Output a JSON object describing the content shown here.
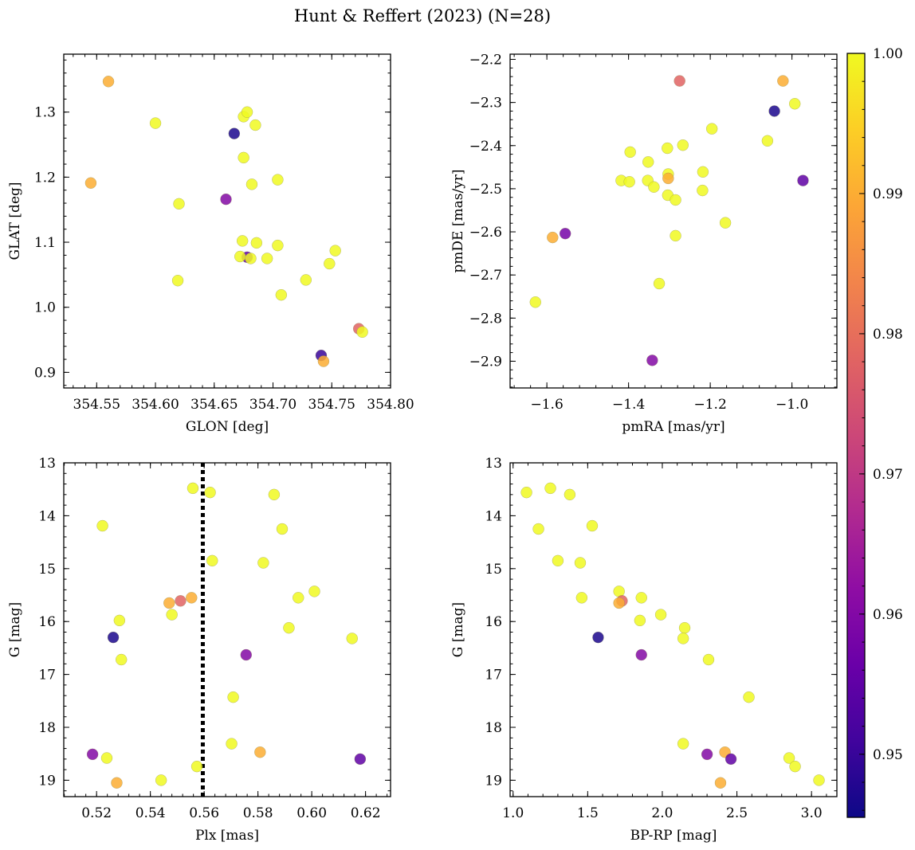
{
  "title": "Hunt & Reffert (2023) (N=28)",
  "colorbar": {
    "range": [
      0.9455,
      1.0
    ],
    "ticks": [
      0.95,
      0.96,
      0.97,
      0.98,
      0.99,
      1.0
    ],
    "tick_labels": [
      "0.95",
      "0.96",
      "0.97",
      "0.98",
      "0.99",
      "1.00"
    ],
    "colormap": "plasma"
  },
  "chart_data": [
    {
      "id": "tl",
      "type": "scatter",
      "xlabel": "GLON [deg]",
      "ylabel": "GLAT [deg]",
      "xlim": [
        354.522,
        354.8
      ],
      "ylim": [
        0.876,
        1.389
      ],
      "inverted_y": false,
      "xticks": [
        354.55,
        354.6,
        354.65,
        354.7,
        354.75,
        354.8
      ],
      "xtick_labels": [
        "354.55",
        "354.60",
        "354.65",
        "354.70",
        "354.75",
        "354.80"
      ],
      "yticks": [
        0.9,
        1.0,
        1.1,
        1.2,
        1.3
      ],
      "ytick_labels": [
        "0.9",
        "1.0",
        "1.1",
        "1.2",
        "1.3"
      ],
      "points": [
        [
          354.56,
          1.347,
          0.99
        ],
        [
          354.545,
          1.191,
          0.99
        ],
        [
          354.6,
          1.283,
          1.0
        ],
        [
          354.62,
          1.159,
          1.0
        ],
        [
          354.619,
          1.041,
          1.0
        ],
        [
          354.667,
          1.267,
          0.947
        ],
        [
          354.66,
          1.166,
          0.96
        ],
        [
          354.675,
          1.293,
          1.0
        ],
        [
          354.678,
          1.3,
          1.0
        ],
        [
          354.685,
          1.28,
          1.0
        ],
        [
          354.675,
          1.23,
          1.0
        ],
        [
          354.682,
          1.189,
          1.0
        ],
        [
          354.704,
          1.196,
          1.0
        ],
        [
          354.674,
          1.102,
          1.0
        ],
        [
          354.686,
          1.099,
          1.0
        ],
        [
          354.678,
          1.077,
          0.955
        ],
        [
          354.672,
          1.078,
          1.0
        ],
        [
          354.681,
          1.075,
          1.0
        ],
        [
          354.695,
          1.075,
          1.0
        ],
        [
          354.704,
          1.095,
          1.0
        ],
        [
          354.753,
          1.087,
          1.0
        ],
        [
          354.748,
          1.067,
          1.0
        ],
        [
          354.728,
          1.042,
          1.0
        ],
        [
          354.707,
          1.019,
          1.0
        ],
        [
          354.773,
          0.967,
          0.978
        ],
        [
          354.776,
          0.962,
          1.0
        ],
        [
          354.741,
          0.926,
          0.95
        ],
        [
          354.743,
          0.917,
          0.99
        ]
      ]
    },
    {
      "id": "tr",
      "type": "scatter",
      "xlabel": "pmRA [mas/yr]",
      "ylabel": "pmDE [mas/yr]",
      "xlim": [
        -1.69,
        -0.89
      ],
      "ylim": [
        -2.962,
        -2.188
      ],
      "inverted_y": false,
      "xticks": [
        -1.6,
        -1.4,
        -1.2,
        -1.0
      ],
      "xtick_labels": [
        "−1.6",
        "−1.4",
        "−1.2",
        "−1.0"
      ],
      "yticks": [
        -2.9,
        -2.8,
        -2.7,
        -2.6,
        -2.5,
        -2.4,
        -2.3,
        -2.2
      ],
      "ytick_labels": [
        "−2.9",
        "−2.8",
        "−2.7",
        "−2.6",
        "−2.5",
        "−2.4",
        "−2.3",
        "−2.2"
      ],
      "points": [
        [
          -1.275,
          -2.25,
          0.978
        ],
        [
          -1.022,
          -2.25,
          0.99
        ],
        [
          -1.043,
          -2.32,
          0.947
        ],
        [
          -0.993,
          -2.303,
          1.0
        ],
        [
          -1.196,
          -2.361,
          1.0
        ],
        [
          -1.06,
          -2.389,
          1.0
        ],
        [
          -1.267,
          -2.399,
          1.0
        ],
        [
          -1.305,
          -2.406,
          1.0
        ],
        [
          -1.396,
          -2.415,
          1.0
        ],
        [
          -1.352,
          -2.438,
          1.0
        ],
        [
          -1.218,
          -2.461,
          1.0
        ],
        [
          -0.973,
          -2.481,
          0.955
        ],
        [
          -1.418,
          -2.481,
          1.0
        ],
        [
          -1.398,
          -2.484,
          1.0
        ],
        [
          -1.353,
          -2.481,
          1.0
        ],
        [
          -1.303,
          -2.466,
          1.0
        ],
        [
          -1.303,
          -2.476,
          0.99
        ],
        [
          -1.338,
          -2.496,
          1.0
        ],
        [
          -1.219,
          -2.504,
          1.0
        ],
        [
          -1.304,
          -2.515,
          1.0
        ],
        [
          -1.285,
          -2.526,
          1.0
        ],
        [
          -1.163,
          -2.579,
          1.0
        ],
        [
          -1.285,
          -2.609,
          1.0
        ],
        [
          -1.555,
          -2.604,
          0.958
        ],
        [
          -1.586,
          -2.613,
          0.99
        ],
        [
          -1.325,
          -2.72,
          1.0
        ],
        [
          -1.628,
          -2.763,
          1.0
        ],
        [
          -1.342,
          -2.898,
          0.96
        ]
      ]
    },
    {
      "id": "bl",
      "type": "scatter",
      "xlabel": "Plx [mas]",
      "ylabel": "G [mag]",
      "xlim": [
        0.5078,
        0.6293
      ],
      "ylim": [
        13.0,
        19.31
      ],
      "inverted_y": true,
      "vline": 0.5595,
      "xticks": [
        0.52,
        0.54,
        0.56,
        0.58,
        0.6,
        0.62
      ],
      "xtick_labels": [
        "0.52",
        "0.54",
        "0.56",
        "0.58",
        "0.60",
        "0.62"
      ],
      "yticks": [
        13,
        14,
        15,
        16,
        17,
        18,
        19
      ],
      "ytick_labels": [
        "13",
        "14",
        "15",
        "16",
        "17",
        "18",
        "19"
      ],
      "points": [
        [
          0.5558,
          13.48,
          1.0
        ],
        [
          0.5622,
          13.56,
          1.0
        ],
        [
          0.586,
          13.6,
          1.0
        ],
        [
          0.5222,
          14.19,
          1.0
        ],
        [
          0.589,
          14.25,
          1.0
        ],
        [
          0.563,
          14.85,
          1.0
        ],
        [
          0.582,
          14.89,
          1.0
        ],
        [
          0.601,
          15.43,
          1.0
        ],
        [
          0.595,
          15.55,
          1.0
        ],
        [
          0.5553,
          15.55,
          0.99
        ],
        [
          0.5512,
          15.61,
          0.978
        ],
        [
          0.547,
          15.65,
          0.99
        ],
        [
          0.548,
          15.87,
          1.0
        ],
        [
          0.5285,
          15.98,
          1.0
        ],
        [
          0.5915,
          16.12,
          1.0
        ],
        [
          0.5262,
          16.3,
          0.947
        ],
        [
          0.615,
          16.32,
          1.0
        ],
        [
          0.5292,
          16.72,
          1.0
        ],
        [
          0.5756,
          16.63,
          0.96
        ],
        [
          0.5708,
          17.43,
          1.0
        ],
        [
          0.5702,
          18.31,
          1.0
        ],
        [
          0.5808,
          18.47,
          0.99
        ],
        [
          0.5185,
          18.51,
          0.96
        ],
        [
          0.5238,
          18.58,
          1.0
        ],
        [
          0.618,
          18.6,
          0.955
        ],
        [
          0.5573,
          18.74,
          1.0
        ],
        [
          0.544,
          19.0,
          1.0
        ],
        [
          0.5275,
          19.05,
          0.99
        ]
      ]
    },
    {
      "id": "br",
      "type": "scatter",
      "xlabel": "BP-RP [mag]",
      "ylabel": "G [mag]",
      "xlim": [
        0.98,
        3.17
      ],
      "ylim": [
        13.0,
        19.31
      ],
      "inverted_y": true,
      "xticks": [
        1.0,
        1.5,
        2.0,
        2.5,
        3.0
      ],
      "xtick_labels": [
        "1.0",
        "1.5",
        "2.0",
        "2.5",
        "3.0"
      ],
      "yticks": [
        13,
        14,
        15,
        16,
        17,
        18,
        19
      ],
      "ytick_labels": [
        "13",
        "14",
        "15",
        "16",
        "17",
        "18",
        "19"
      ],
      "points": [
        [
          1.09,
          13.56,
          1.0
        ],
        [
          1.25,
          13.48,
          1.0
        ],
        [
          1.38,
          13.6,
          1.0
        ],
        [
          1.17,
          14.25,
          1.0
        ],
        [
          1.53,
          14.19,
          1.0
        ],
        [
          1.3,
          14.85,
          1.0
        ],
        [
          1.45,
          14.89,
          1.0
        ],
        [
          1.46,
          15.55,
          1.0
        ],
        [
          1.71,
          15.43,
          1.0
        ],
        [
          1.73,
          15.61,
          0.978
        ],
        [
          1.71,
          15.65,
          0.99
        ],
        [
          1.86,
          15.55,
          1.0
        ],
        [
          1.85,
          15.98,
          1.0
        ],
        [
          1.99,
          15.87,
          1.0
        ],
        [
          1.57,
          16.3,
          0.947
        ],
        [
          2.15,
          16.12,
          1.0
        ],
        [
          2.14,
          16.32,
          1.0
        ],
        [
          1.86,
          16.63,
          0.96
        ],
        [
          2.31,
          16.72,
          1.0
        ],
        [
          2.58,
          17.43,
          1.0
        ],
        [
          2.14,
          18.31,
          1.0
        ],
        [
          2.3,
          18.51,
          0.96
        ],
        [
          2.42,
          18.47,
          0.99
        ],
        [
          2.46,
          18.6,
          0.955
        ],
        [
          2.85,
          18.58,
          1.0
        ],
        [
          2.89,
          18.74,
          1.0
        ],
        [
          3.05,
          19.0,
          1.0
        ],
        [
          2.39,
          19.05,
          0.99
        ]
      ]
    }
  ]
}
